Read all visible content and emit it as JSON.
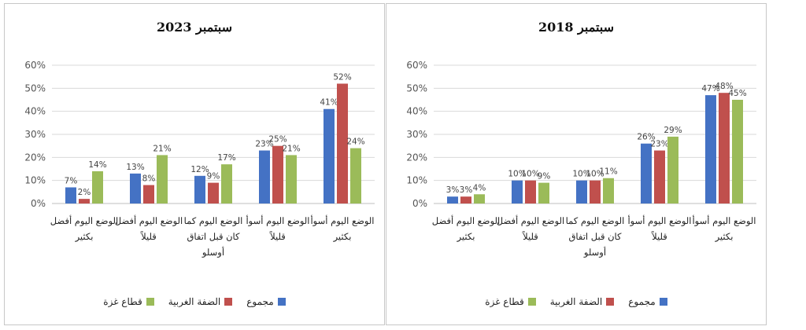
{
  "chart_data": [
    {
      "type": "bar",
      "title": "سبتمبر 2023",
      "categories": [
        "الوضع اليوم أفضل بكثير",
        "الوضع اليوم أفضل قليلاً",
        "الوضع اليوم كما كان قبل اتفاق أوسلو",
        "الوضع اليوم أسوأ قليلاً",
        "الوضع اليوم أسوأ بكثير"
      ],
      "series": [
        {
          "name": "مجموع",
          "values": [
            7,
            13,
            12,
            23,
            41
          ],
          "labels": [
            "7%",
            "13%",
            "12%",
            "23%",
            "41%"
          ]
        },
        {
          "name": "الضفة الغربية",
          "values": [
            2,
            8,
            9,
            25,
            52
          ],
          "labels": [
            "2%",
            "8%",
            "9%",
            "25%",
            "52%"
          ]
        },
        {
          "name": "قطاع غزة",
          "values": [
            14,
            21,
            17,
            21,
            24
          ],
          "labels": [
            "14%",
            "21%",
            "17%",
            "21%",
            "24%"
          ]
        }
      ],
      "ylim": [
        0,
        60
      ],
      "yticks": [
        "0%",
        "10%",
        "20%",
        "30%",
        "40%",
        "50%",
        "60%"
      ],
      "grid": true,
      "legend": "bottom"
    },
    {
      "type": "bar",
      "title": "سبتمبر 2018",
      "categories": [
        "الوضع اليوم أفضل بكثير",
        "الوضع اليوم أفضل قليلاً",
        "الوضع اليوم كما كان قبل اتفاق أوسلو",
        "الوضع اليوم أسوأ قليلاً",
        "الوضع اليوم أسوأ بكثير"
      ],
      "series": [
        {
          "name": "مجموع",
          "values": [
            3,
            10,
            10,
            26,
            47
          ],
          "labels": [
            "3%",
            "10%",
            "10%",
            "26%",
            "47%"
          ]
        },
        {
          "name": "الضفة الغربية",
          "values": [
            3,
            10,
            10,
            23,
            48
          ],
          "labels": [
            "3%",
            "10%",
            "10%",
            "23%",
            "48%"
          ]
        },
        {
          "name": "قطاع غزة",
          "values": [
            4,
            9,
            11,
            29,
            45
          ],
          "labels": [
            "4%",
            "9%",
            "11%",
            "29%",
            "45%"
          ]
        }
      ],
      "ylim": [
        0,
        60
      ],
      "yticks": [
        "0%",
        "10%",
        "20%",
        "30%",
        "40%",
        "50%",
        "60%"
      ],
      "grid": true,
      "legend": "bottom"
    }
  ],
  "colors": {
    "series": [
      "#4472C4",
      "#C0504D",
      "#9BBB59"
    ],
    "grid": "#d9d9d9",
    "axis": "#bfbfbf"
  }
}
